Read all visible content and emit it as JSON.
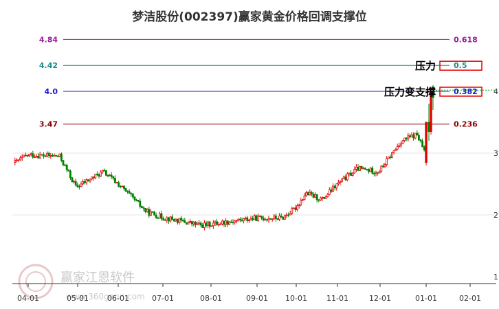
{
  "chart_data": {
    "type": "candlestick",
    "title": "梦洁股份(002397)赢家黄金价格回调支撑位",
    "xlabel": "",
    "ylabel": "",
    "x_ticks": [
      "04-01",
      "05-01",
      "06-01",
      "07-01",
      "08-01",
      "09-01",
      "10-01",
      "11-01",
      "12-01",
      "01-01",
      "02-01"
    ],
    "y_ticks": [
      {
        "value": 4,
        "label": "4"
      },
      {
        "value": 3,
        "label": "3"
      },
      {
        "value": 2,
        "label": "2"
      },
      {
        "value": 1,
        "label": "1"
      }
    ],
    "ylim": [
      1,
      4.84
    ],
    "grid": true,
    "levels": [
      {
        "price": 4.84,
        "price_label": "4.84",
        "ratio": "0.618",
        "color": "#9b1a9b"
      },
      {
        "price": 4.42,
        "price_label": "4.42",
        "ratio": "0.5",
        "color": "#1a8c8c"
      },
      {
        "price": 4.0,
        "price_label": "4.0",
        "ratio": "0.382",
        "color": "#1a1ad4"
      },
      {
        "price": 3.47,
        "price_label": "3.47",
        "ratio": "0.236",
        "color": "#8b0000"
      }
    ],
    "price_anchors": [
      {
        "date": "03-23",
        "price": 2.85
      },
      {
        "date": "04-01",
        "price": 2.97
      },
      {
        "date": "04-20",
        "price": 2.95
      },
      {
        "date": "04-30",
        "price": 2.45
      },
      {
        "date": "05-20",
        "price": 2.7
      },
      {
        "date": "06-01",
        "price": 2.5
      },
      {
        "date": "06-20",
        "price": 2.05
      },
      {
        "date": "07-01",
        "price": 1.96
      },
      {
        "date": "07-25",
        "price": 1.83
      },
      {
        "date": "08-15",
        "price": 1.9
      },
      {
        "date": "09-01",
        "price": 1.95
      },
      {
        "date": "09-20",
        "price": 1.95
      },
      {
        "date": "09-30",
        "price": 2.1
      },
      {
        "date": "10-08",
        "price": 2.35
      },
      {
        "date": "10-20",
        "price": 2.25
      },
      {
        "date": "11-01",
        "price": 2.5
      },
      {
        "date": "11-15",
        "price": 2.75
      },
      {
        "date": "11-30",
        "price": 2.7
      },
      {
        "date": "12-15",
        "price": 3.2
      },
      {
        "date": "12-25",
        "price": 3.3
      },
      {
        "date": "01-05",
        "price": 2.75
      },
      {
        "date": "01-15",
        "price": 2.7
      },
      {
        "date": "01-25",
        "price": 2.9
      },
      {
        "date": "01-28",
        "price": 3.4
      },
      {
        "date": "01-31",
        "price": 4.05
      }
    ],
    "annotations": [
      {
        "text": "压力",
        "price": 4.42
      },
      {
        "text": "压力变支撑",
        "price": 4.0
      }
    ]
  },
  "watermark": {
    "name": "赢家江恩软件",
    "url": "www.360gann.com"
  },
  "colors": {
    "up": "#e60000",
    "down": "#008000",
    "grid": "#e6e6e6",
    "box": "#e60000",
    "axis": "#333333"
  }
}
